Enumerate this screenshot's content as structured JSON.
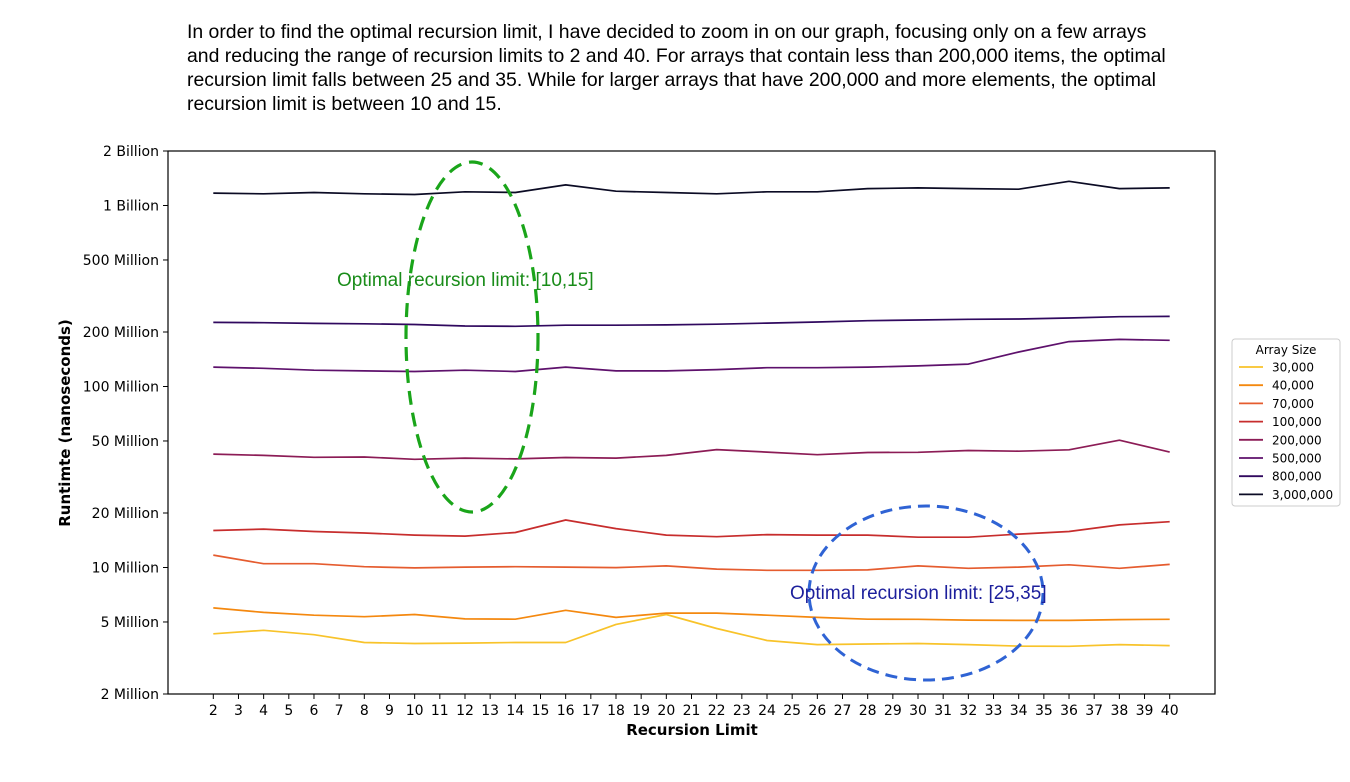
{
  "description": {
    "lines": [
      "In order to find the optimal recursion limit, I have decided to zoom in on our graph, focusing only on a few arrays",
      "and reducing the range of recursion limits to 2 and 40. For arrays that contain less than 200,000 items, the optimal",
      "recursion limit falls between 25 and 35. While for larger arrays that have 200,000 and more elements, the optimal",
      "recursion limit is between 10 and 15."
    ]
  },
  "chart_data": {
    "type": "line",
    "title": "",
    "xlabel": "Recursion Limit",
    "ylabel": "Runtimte (nanoseconds)",
    "y_scale": "log",
    "ylim": [
      2000000,
      2000000000
    ],
    "y_ticks": [
      {
        "value": 2000000,
        "label": "2 Million"
      },
      {
        "value": 5000000,
        "label": "5 Million"
      },
      {
        "value": 10000000,
        "label": "10 Million"
      },
      {
        "value": 20000000,
        "label": "20 Million"
      },
      {
        "value": 50000000,
        "label": "50 Million"
      },
      {
        "value": 100000000,
        "label": "100 Million"
      },
      {
        "value": 200000000,
        "label": "200 Million"
      },
      {
        "value": 500000000,
        "label": "500 Million"
      },
      {
        "value": 1000000000,
        "label": "1 Billion"
      },
      {
        "value": 2000000000,
        "label": "2 Billion"
      }
    ],
    "x_ticks": [
      2,
      3,
      4,
      5,
      6,
      7,
      8,
      9,
      10,
      11,
      12,
      13,
      14,
      15,
      16,
      17,
      18,
      19,
      20,
      21,
      22,
      23,
      24,
      25,
      26,
      27,
      28,
      29,
      30,
      31,
      32,
      33,
      34,
      35,
      36,
      37,
      38,
      39,
      40
    ],
    "x": [
      2,
      4,
      6,
      8,
      10,
      12,
      14,
      16,
      18,
      20,
      22,
      24,
      26,
      28,
      30,
      32,
      34,
      36,
      38,
      40
    ],
    "legend": {
      "title": "Array Size",
      "position": "right"
    },
    "series": [
      {
        "name": "30,000",
        "color": "#f8c32a",
        "values": [
          4300000.0,
          4500000.0,
          4250000.0,
          3850000.0,
          3800000.0,
          3820000.0,
          3850000.0,
          3850000.0,
          4850000.0,
          5500000.0,
          4600000.0,
          3950000.0,
          3750000.0,
          3780000.0,
          3800000.0,
          3750000.0,
          3680000.0,
          3670000.0,
          3750000.0,
          3700000.0
        ]
      },
      {
        "name": "40,000",
        "color": "#f4880f",
        "values": [
          5980000.0,
          5650000.0,
          5450000.0,
          5350000.0,
          5500000.0,
          5200000.0,
          5180000.0,
          5800000.0,
          5300000.0,
          5600000.0,
          5600000.0,
          5450000.0,
          5300000.0,
          5180000.0,
          5170000.0,
          5120000.0,
          5100000.0,
          5100000.0,
          5150000.0,
          5170000.0
        ]
      },
      {
        "name": "70,000",
        "color": "#e55c2f",
        "values": [
          11700000.0,
          10500000.0,
          10500000.0,
          10100000.0,
          9950000.0,
          10050000.0,
          10100000.0,
          10050000.0,
          9980000.0,
          10200000.0,
          9800000.0,
          9650000.0,
          9650000.0,
          9700000.0,
          10200000.0,
          9900000.0,
          10050000.0,
          10350000.0,
          9900000.0,
          10400000.0
        ]
      },
      {
        "name": "100,000",
        "color": "#c72d2d",
        "values": [
          16000000.0,
          16300000.0,
          15800000.0,
          15500000.0,
          15100000.0,
          14900000.0,
          15600000.0,
          18300000.0,
          16400000.0,
          15100000.0,
          14800000.0,
          15200000.0,
          15100000.0,
          15100000.0,
          14700000.0,
          14700000.0,
          15300000.0,
          15800000.0,
          17200000.0,
          17900000.0
        ]
      },
      {
        "name": "200,000",
        "color": "#8c1c56",
        "values": [
          42300000.0,
          41600000.0,
          40600000.0,
          40800000.0,
          39600000.0,
          40200000.0,
          39800000.0,
          40500000.0,
          40200000.0,
          41600000.0,
          44800000.0,
          43400000.0,
          42000000.0,
          43200000.0,
          43300000.0,
          44300000.0,
          43900000.0,
          44700000.0,
          50500000.0,
          43400000.0
        ]
      },
      {
        "name": "500,000",
        "color": "#5e116c",
        "values": [
          128000000.0,
          126000000.0,
          123000000.0,
          122000000.0,
          121000000.0,
          123000000.0,
          121000000.0,
          128000000.0,
          122000000.0,
          122000000.0,
          124000000.0,
          127000000.0,
          127000000.0,
          128000000.0,
          130000000.0,
          133000000.0,
          155000000.0,
          177000000.0,
          182000000.0,
          180000000.0
        ]
      },
      {
        "name": "800,000",
        "color": "#30095f",
        "values": [
          226000000.0,
          225000000.0,
          223000000.0,
          222000000.0,
          220000000.0,
          216000000.0,
          215000000.0,
          218000000.0,
          218000000.0,
          219000000.0,
          221000000.0,
          224000000.0,
          227000000.0,
          231000000.0,
          233000000.0,
          235000000.0,
          236000000.0,
          239000000.0,
          243000000.0,
          244000000.0
        ]
      },
      {
        "name": "3,000,000",
        "color": "#0b0b24",
        "values": [
          1170000000.0,
          1160000000.0,
          1180000000.0,
          1160000000.0,
          1150000000.0,
          1190000000.0,
          1180000000.0,
          1300000000.0,
          1200000000.0,
          1180000000.0,
          1160000000.0,
          1190000000.0,
          1190000000.0,
          1240000000.0,
          1250000000.0,
          1240000000.0,
          1230000000.0,
          1360000000.0,
          1240000000.0,
          1250000000.0
        ]
      }
    ],
    "annotations": [
      {
        "text": "Optimal recursion limit: [10,15]",
        "color": "#198c19",
        "ellipse_color": "#1aa51a"
      },
      {
        "text": "Optimal recursion limit: [25,35]",
        "color": "#1c1f9c",
        "ellipse_color": "#2f63d4"
      }
    ]
  }
}
